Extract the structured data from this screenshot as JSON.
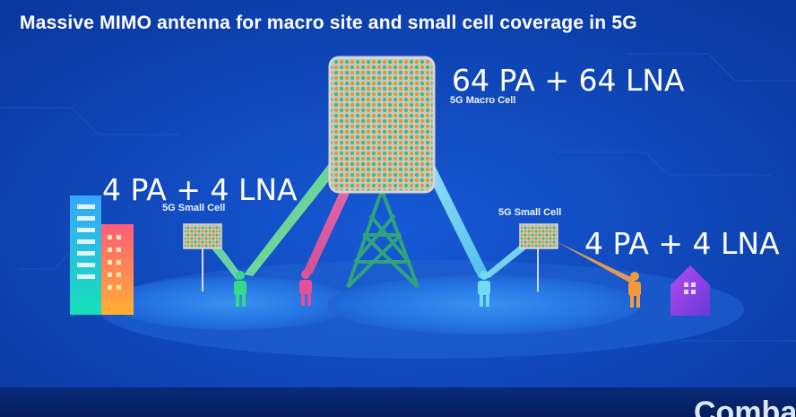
{
  "title": "Massive MIMO antenna for macro site and small cell coverage in 5G",
  "macro": {
    "label": "5G Macro Cell",
    "overlay": "64 PA + 64 LNA"
  },
  "small_left": {
    "label": "5G Small Cell",
    "overlay": "4 PA + 4 LNA"
  },
  "small_right": {
    "label": "5G Small Cell",
    "overlay": "4 PA + 4 LNA"
  },
  "brand": "Comba",
  "colors": {
    "background": "#0a3fae",
    "tower": "#2fa37c",
    "antenna_panel": "#c8c8c8",
    "beam_green": "#5fe08a",
    "beam_pink": "#f06aa6",
    "beam_cyan": "#6ad9f0",
    "beam_orange": "#f5a24a",
    "coverage": "#2f86ee"
  },
  "icons": [
    "building-icon",
    "house-icon",
    "person-icon",
    "tower-icon",
    "antenna-panel-icon"
  ]
}
